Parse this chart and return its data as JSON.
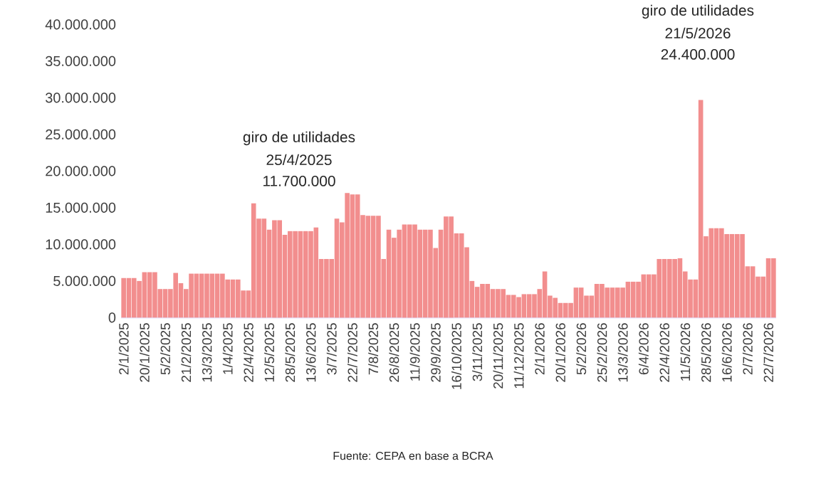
{
  "chart_data": {
    "type": "bar",
    "categories": [
      "2/1/2025",
      null,
      null,
      null,
      "20/1/2025",
      null,
      null,
      null,
      "5/2/2025",
      null,
      null,
      null,
      "21/2/2025",
      null,
      null,
      null,
      "13/3/2025",
      null,
      null,
      null,
      "1/4/2025",
      null,
      null,
      null,
      "22/4/2025",
      null,
      null,
      null,
      "12/5/2025",
      null,
      null,
      null,
      "28/5/2025",
      null,
      null,
      null,
      "13/6/2025",
      null,
      null,
      null,
      "3/7/2025",
      null,
      null,
      null,
      "22/7/2025",
      null,
      null,
      null,
      "7/8/2025",
      null,
      null,
      null,
      "26/8/2025",
      null,
      null,
      null,
      "11/9/2025",
      null,
      null,
      null,
      "29/9/2025",
      null,
      null,
      null,
      "16/10/2025",
      null,
      null,
      null,
      "3/11/2025",
      null,
      null,
      null,
      "20/11/2025",
      null,
      null,
      null,
      "11/12/2025",
      null,
      null,
      null,
      "2/1/2026",
      null,
      null,
      null,
      "20/1/2026",
      null,
      null,
      null,
      "5/2/2026",
      null,
      null,
      null,
      "25/2/2026",
      null,
      null,
      null,
      "13/3/2026",
      null,
      null,
      null,
      "6/4/2026",
      null,
      null,
      null,
      "22/4/2026",
      null,
      null,
      null,
      "11/5/2026",
      null,
      null,
      null,
      "28/5/2026",
      null,
      null,
      null,
      "16/6/2026",
      null,
      null,
      null,
      "2/7/2026",
      null,
      null,
      null,
      "22/7/2026",
      null
    ],
    "values": [
      5400000,
      5400000,
      5400000,
      5000000,
      6200000,
      6200000,
      6200000,
      3900000,
      3900000,
      3900000,
      6100000,
      4700000,
      3900000,
      6000000,
      6000000,
      6000000,
      6000000,
      6000000,
      6000000,
      6000000,
      5200000,
      5200000,
      5200000,
      3700000,
      3700000,
      15600000,
      13500000,
      13500000,
      12000000,
      13300000,
      13300000,
      11300000,
      11800000,
      11800000,
      11800000,
      11800000,
      11800000,
      12300000,
      8000000,
      8000000,
      8000000,
      13500000,
      13000000,
      17000000,
      16800000,
      16800000,
      14000000,
      13900000,
      13900000,
      13900000,
      8000000,
      12000000,
      10900000,
      12000000,
      12700000,
      12700000,
      12700000,
      12000000,
      12000000,
      12000000,
      9500000,
      12000000,
      13800000,
      13800000,
      11500000,
      11500000,
      9600000,
      5000000,
      4200000,
      4600000,
      4600000,
      3900000,
      3900000,
      3900000,
      3100000,
      3100000,
      2800000,
      3200000,
      3200000,
      3200000,
      3900000,
      6300000,
      3000000,
      2700000,
      2000000,
      2000000,
      2000000,
      4100000,
      4100000,
      3000000,
      3000000,
      4600000,
      4600000,
      4100000,
      4100000,
      4100000,
      4100000,
      4900000,
      4900000,
      4900000,
      5900000,
      5900000,
      5900000,
      8000000,
      8000000,
      8000000,
      8000000,
      8100000,
      6300000,
      5200000,
      5200000,
      29700000,
      11100000,
      12200000,
      12200000,
      12200000,
      11400000,
      11400000,
      11400000,
      11400000,
      7000000,
      7000000,
      5600000,
      5600000,
      8100000,
      8100000
    ],
    "color": "#f28e8e",
    "ylim": [
      0,
      40000000
    ],
    "yticks": [
      {
        "value": 0,
        "label": "0"
      },
      {
        "value": 5000000,
        "label": "5.000.000"
      },
      {
        "value": 10000000,
        "label": "10.000.000"
      },
      {
        "value": 15000000,
        "label": "15.000.000"
      },
      {
        "value": 20000000,
        "label": "20.000.000"
      },
      {
        "value": 25000000,
        "label": "25.000.000"
      },
      {
        "value": 30000000,
        "label": "30.000.000"
      },
      {
        "value": 35000000,
        "label": "35.000.000"
      },
      {
        "value": 40000000,
        "label": "40.000.000"
      }
    ],
    "annotations": [
      "giro de utilidades",
      "25/4/2025",
      "11.700.000",
      "giro de utilidades",
      "21/5/2026",
      "24.400.000",
      "Fuente: CEPA en base a BCRA"
    ]
  }
}
